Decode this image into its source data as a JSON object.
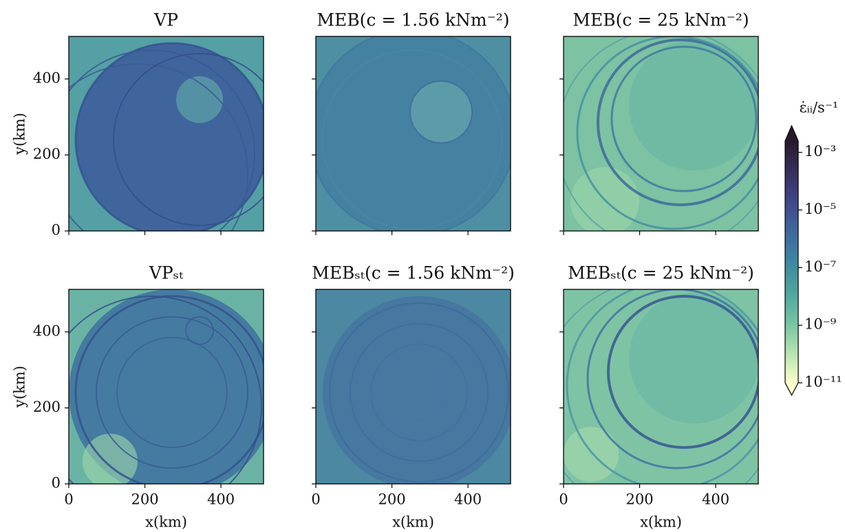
{
  "chart_data": [
    {
      "type": "heatmap",
      "title": "VP",
      "ylabel": "y(km)",
      "xlim": [
        0,
        512
      ],
      "ylim": [
        0,
        512
      ],
      "xticks": [
        0,
        200,
        400
      ],
      "yticks": [
        0,
        200,
        400
      ]
    },
    {
      "type": "heatmap",
      "title": "MEB(c = 1.56 kNm⁻²)",
      "xlim": [
        0,
        512
      ],
      "ylim": [
        0,
        512
      ],
      "xticks": [
        0,
        200,
        400
      ],
      "yticks": [
        0,
        200,
        400
      ]
    },
    {
      "type": "heatmap",
      "title": "MEB(c = 25 kNm⁻²)",
      "xlim": [
        0,
        512
      ],
      "ylim": [
        0,
        512
      ],
      "xticks": [
        0,
        200,
        400
      ],
      "yticks": [
        0,
        200,
        400
      ]
    },
    {
      "type": "heatmap",
      "title": "VPₛₜ",
      "xlabel": "x(km)",
      "ylabel": "y(km)",
      "xlim": [
        0,
        512
      ],
      "ylim": [
        0,
        512
      ],
      "xticks": [
        0,
        200,
        400
      ],
      "yticks": [
        0,
        200,
        400
      ]
    },
    {
      "type": "heatmap",
      "title": "MEBₛₜ(c = 1.56 kNm⁻²)",
      "xlabel": "x(km)",
      "xlim": [
        0,
        512
      ],
      "ylim": [
        0,
        512
      ],
      "xticks": [
        0,
        200,
        400
      ],
      "yticks": [
        0,
        200,
        400
      ]
    },
    {
      "type": "heatmap",
      "title": "MEBₛₜ(c = 25 kNm⁻²)",
      "xlabel": "x(km)",
      "xlim": [
        0,
        512
      ],
      "ylim": [
        0,
        512
      ],
      "xticks": [
        0,
        200,
        400
      ],
      "yticks": [
        0,
        200,
        400
      ]
    }
  ],
  "colorbar": {
    "label": "ε̇ᵢᵢ/s⁻¹",
    "scale": "log",
    "lim": [
      1e-11,
      0.0025
    ],
    "ticks": [
      {
        "value": 0.001,
        "label": "10⁻³"
      },
      {
        "value": 1e-05,
        "label": "10⁻⁵"
      },
      {
        "value": 1e-07,
        "label": "10⁻⁷"
      },
      {
        "value": 1e-09,
        "label": "10⁻⁹"
      },
      {
        "value": 1e-11,
        "label": "10⁻¹¹"
      }
    ],
    "colors": [
      "#fdfecc",
      "#b5e3b0",
      "#74c3a2",
      "#4fa5a0",
      "#3f87a0",
      "#3f679c",
      "#41468a",
      "#362f5c",
      "#281a2c"
    ]
  }
}
